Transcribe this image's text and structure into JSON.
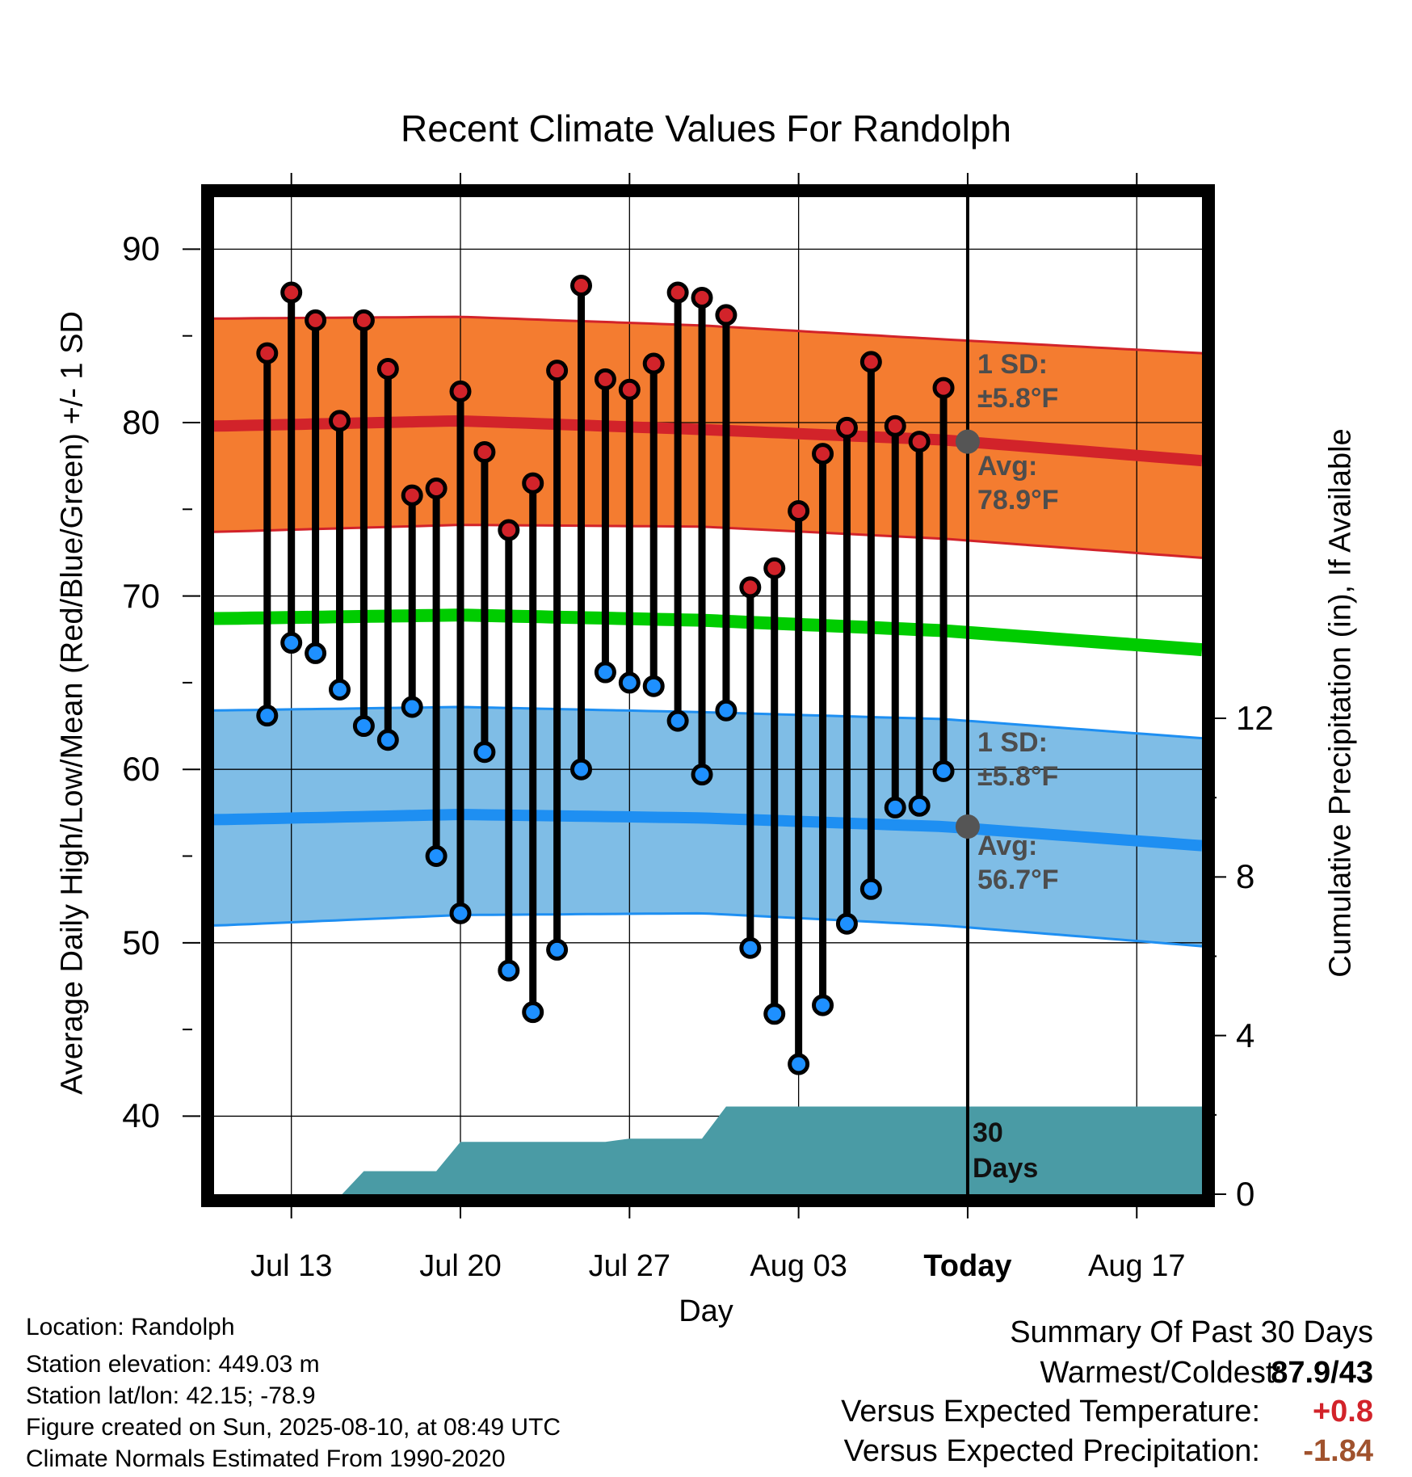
{
  "title": "Recent Climate Values For Randolph",
  "xlabel": "Day",
  "ylabel_left": "Average Daily High/Low/Mean (Red/Blue/Green) +/- 1 SD",
  "ylabel_right": "Cumulative Precipitation (in), If Available",
  "x_ticks": [
    {
      "label": "Jul 13",
      "day": 13
    },
    {
      "label": "Jul 20",
      "day": 20
    },
    {
      "label": "Jul 27",
      "day": 27
    },
    {
      "label": "Aug 03",
      "day": 34
    },
    {
      "label": "Today",
      "day": 41
    },
    {
      "label": "Aug 17",
      "day": 48
    }
  ],
  "y_ticks_left": [
    "40",
    "50",
    "60",
    "70",
    "80",
    "90"
  ],
  "y_ticks_right": [
    "0",
    "4",
    "8",
    "12"
  ],
  "annotations": {
    "high_sd": "1 SD:\n±5.8°F",
    "high_avg": "Avg:\n78.9°F",
    "low_sd": "1 SD:\n±5.8°F",
    "low_avg": "Avg:\n56.7°F",
    "days": "30\nDays"
  },
  "info": {
    "location": "Location: Randolph",
    "elevation": "Station elevation: 449.03 m",
    "latlon": "Station lat/lon: 42.15; -78.9",
    "created": "Figure created on Sun, 2025-08-10, at 08:49 UTC",
    "normals": "Climate Normals Estimated From 1990-2020"
  },
  "summary": {
    "title": "Summary Of Past 30 Days",
    "warmest_label": "Warmest/Coldest:",
    "warmest_value": "87.9/43",
    "temp_label": "Versus Expected Temperature:",
    "temp_value": "+0.8",
    "precip_label": "Versus Expected Precipitation:",
    "precip_value": "-1.84"
  },
  "colors": {
    "high_band": "#f47c30",
    "high_line": "#d2232a",
    "low_band": "#7fbde6",
    "low_line": "#1e8ff2",
    "mean_line": "#00cc00",
    "precip": "#4a9ba5",
    "high_dot": "#d2232a",
    "low_dot": "#1e90ff",
    "today_dot": "#555555",
    "temp_value": "#d2232a",
    "precip_value": "#a0522d"
  },
  "chart_data": {
    "type": "line",
    "x_unit": "day (Jul 1 = 1)",
    "xlim": [
      9.8,
      50.7
    ],
    "ylim": [
      35.5,
      93
    ],
    "today_day": 41,
    "daily": {
      "day": [
        12,
        13,
        14,
        15,
        16,
        17,
        18,
        19,
        20,
        21,
        22,
        23,
        24,
        25,
        26,
        27,
        28,
        29,
        30,
        31,
        32,
        33,
        34,
        35,
        36,
        37,
        38,
        39,
        40
      ],
      "high": [
        84.0,
        87.5,
        85.9,
        80.1,
        85.9,
        83.1,
        75.8,
        76.2,
        81.8,
        78.3,
        73.8,
        76.5,
        83.0,
        87.9,
        82.5,
        81.9,
        83.4,
        87.5,
        87.2,
        86.2,
        70.5,
        71.6,
        74.9,
        78.2,
        79.7,
        83.5,
        79.8,
        78.9,
        82.0
      ],
      "low": [
        63.1,
        67.3,
        66.7,
        64.6,
        62.5,
        61.7,
        63.6,
        55.0,
        51.7,
        61.0,
        48.4,
        46.0,
        49.6,
        60.0,
        65.6,
        65.0,
        64.8,
        62.8,
        59.7,
        63.4,
        49.7,
        45.9,
        43.0,
        46.4,
        51.1,
        53.1,
        57.8,
        57.9,
        59.9
      ]
    },
    "normals": {
      "day": [
        10,
        20,
        30,
        40,
        50.7
      ],
      "high_avg": [
        79.8,
        80.1,
        79.6,
        79.0,
        77.8
      ],
      "high_upper": [
        86.0,
        86.1,
        85.6,
        84.8,
        84.0
      ],
      "high_lower": [
        73.7,
        74.1,
        74.0,
        73.3,
        72.2
      ],
      "mean": [
        68.7,
        68.9,
        68.6,
        68.0,
        66.9
      ],
      "low_avg": [
        57.1,
        57.4,
        57.2,
        56.7,
        55.6
      ],
      "low_upper": [
        63.4,
        63.6,
        63.3,
        62.9,
        61.8
      ],
      "low_lower": [
        51.0,
        51.6,
        51.7,
        51.0,
        49.8
      ]
    },
    "today": {
      "high_avg": 78.9,
      "low_avg": 56.7
    },
    "precip": {
      "right_ylim": [
        0,
        12
      ],
      "day": [
        15.1,
        16.0,
        17.0,
        18.1,
        19.0,
        20.0,
        21.0,
        22.0,
        23.0,
        24.0,
        25.0,
        26.0,
        27.0,
        28.0,
        29.0,
        30.0,
        31.0,
        32.0,
        33.0,
        34.0,
        35.0,
        36.0,
        37.0,
        38.0,
        39.0,
        40.0,
        41.0,
        50.7
      ],
      "cumulative": [
        0.0,
        0.58,
        0.58,
        0.58,
        0.58,
        1.32,
        1.32,
        1.32,
        1.32,
        1.32,
        1.32,
        1.32,
        1.4,
        1.4,
        1.4,
        1.4,
        2.21,
        2.21,
        2.21,
        2.21,
        2.21,
        2.21,
        2.21,
        2.21,
        2.21,
        2.21,
        2.21,
        2.21
      ]
    }
  }
}
